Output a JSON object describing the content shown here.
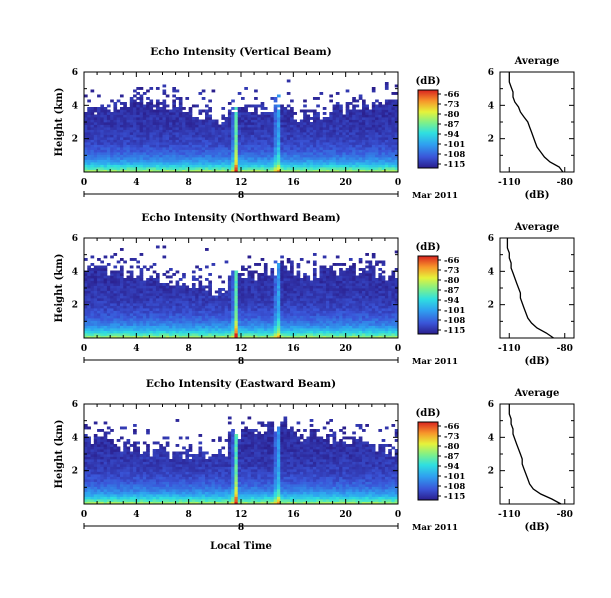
{
  "chart_data": [
    {
      "type": "heatmap",
      "title": "Echo Intensity (Vertical Beam)",
      "ylabel": "Height (km)",
      "x_ticks": [
        "0",
        "4",
        "8",
        "12",
        "16",
        "20",
        "0"
      ],
      "xlim": [
        0,
        24
      ],
      "y_ticks": [
        "2",
        "4",
        "6"
      ],
      "ylim": [
        0,
        6
      ],
      "day_marker": "8",
      "date_label": "Mar 2011",
      "colorbar": {
        "unit": "(dB)",
        "ticks": [
          "-66",
          "-73",
          "-80",
          "-87",
          "-94",
          "-101",
          "-108",
          "-115"
        ]
      },
      "spikes_hours": [
        11.6,
        14.8
      ],
      "average_profile": {
        "title": "Average",
        "xlabel": "(dB)",
        "x_ticks": [
          "-110",
          "-80"
        ],
        "y_ticks": [
          "2",
          "4",
          "6"
        ],
        "xlim": [
          -115,
          -75
        ],
        "heights": [
          0.0,
          0.3,
          0.6,
          0.9,
          1.2,
          1.5,
          1.8,
          2.1,
          2.4,
          2.7,
          3.0,
          3.3,
          3.6,
          3.9,
          4.2,
          4.5,
          4.8,
          5.1,
          5.4,
          5.7,
          6.0
        ],
        "values": [
          -81,
          -83,
          -88,
          -91,
          -93,
          -95,
          -96,
          -97,
          -98,
          -99,
          -100,
          -102,
          -104,
          -105,
          -107,
          -108,
          -108,
          -109,
          -110,
          -110,
          -110
        ]
      }
    },
    {
      "type": "heatmap",
      "title": "Echo Intensity (Northward Beam)",
      "ylabel": "Height (km)",
      "x_ticks": [
        "0",
        "4",
        "8",
        "12",
        "16",
        "20",
        "0"
      ],
      "xlim": [
        0,
        24
      ],
      "y_ticks": [
        "2",
        "4",
        "6"
      ],
      "ylim": [
        0,
        6
      ],
      "day_marker": "8",
      "date_label": "Mar 2011",
      "colorbar": {
        "unit": "(dB)",
        "ticks": [
          "-66",
          "-73",
          "-80",
          "-87",
          "-94",
          "-101",
          "-108",
          "-115"
        ]
      },
      "spikes_hours": [
        11.6,
        14.8
      ],
      "average_profile": {
        "title": "Average",
        "xlabel": "(dB)",
        "x_ticks": [
          "-110",
          "-80"
        ],
        "y_ticks": [
          "2",
          "4",
          "6"
        ],
        "xlim": [
          -115,
          -75
        ],
        "heights": [
          0.0,
          0.3,
          0.6,
          0.9,
          1.2,
          1.5,
          1.8,
          2.1,
          2.4,
          2.7,
          3.0,
          3.3,
          3.6,
          3.9,
          4.2,
          4.5,
          4.8,
          5.1,
          5.4,
          5.7,
          6.0
        ],
        "values": [
          -86,
          -90,
          -95,
          -98,
          -100,
          -101,
          -102,
          -103,
          -104,
          -104,
          -105,
          -106,
          -107,
          -108,
          -109,
          -109,
          -110,
          -110,
          -111,
          -111,
          -111
        ]
      }
    },
    {
      "type": "heatmap",
      "title": "Echo Intensity (Eastward Beam)",
      "ylabel": "Height (km)",
      "xlabel": "Local Time",
      "x_ticks": [
        "0",
        "4",
        "8",
        "12",
        "16",
        "20",
        "0"
      ],
      "xlim": [
        0,
        24
      ],
      "y_ticks": [
        "2",
        "4",
        "6"
      ],
      "ylim": [
        0,
        6
      ],
      "day_marker": "8",
      "date_label": "Mar 2011",
      "colorbar": {
        "unit": "(dB)",
        "ticks": [
          "-66",
          "-73",
          "-80",
          "-87",
          "-94",
          "-101",
          "-108",
          "-115"
        ]
      },
      "spikes_hours": [
        11.6,
        14.8
      ],
      "average_profile": {
        "title": "Average",
        "xlabel": "(dB)",
        "x_ticks": [
          "-110",
          "-80"
        ],
        "y_ticks": [
          "2",
          "4",
          "6"
        ],
        "xlim": [
          -115,
          -75
        ],
        "heights": [
          0.0,
          0.3,
          0.6,
          0.9,
          1.2,
          1.5,
          1.8,
          2.1,
          2.4,
          2.7,
          3.0,
          3.3,
          3.6,
          3.9,
          4.2,
          4.5,
          4.8,
          5.1,
          5.4,
          5.7,
          6.0
        ],
        "values": [
          -82,
          -87,
          -93,
          -97,
          -99,
          -100,
          -101,
          -102,
          -103,
          -103,
          -104,
          -105,
          -106,
          -107,
          -108,
          -108,
          -109,
          -109,
          -110,
          -110,
          -110
        ]
      }
    }
  ]
}
